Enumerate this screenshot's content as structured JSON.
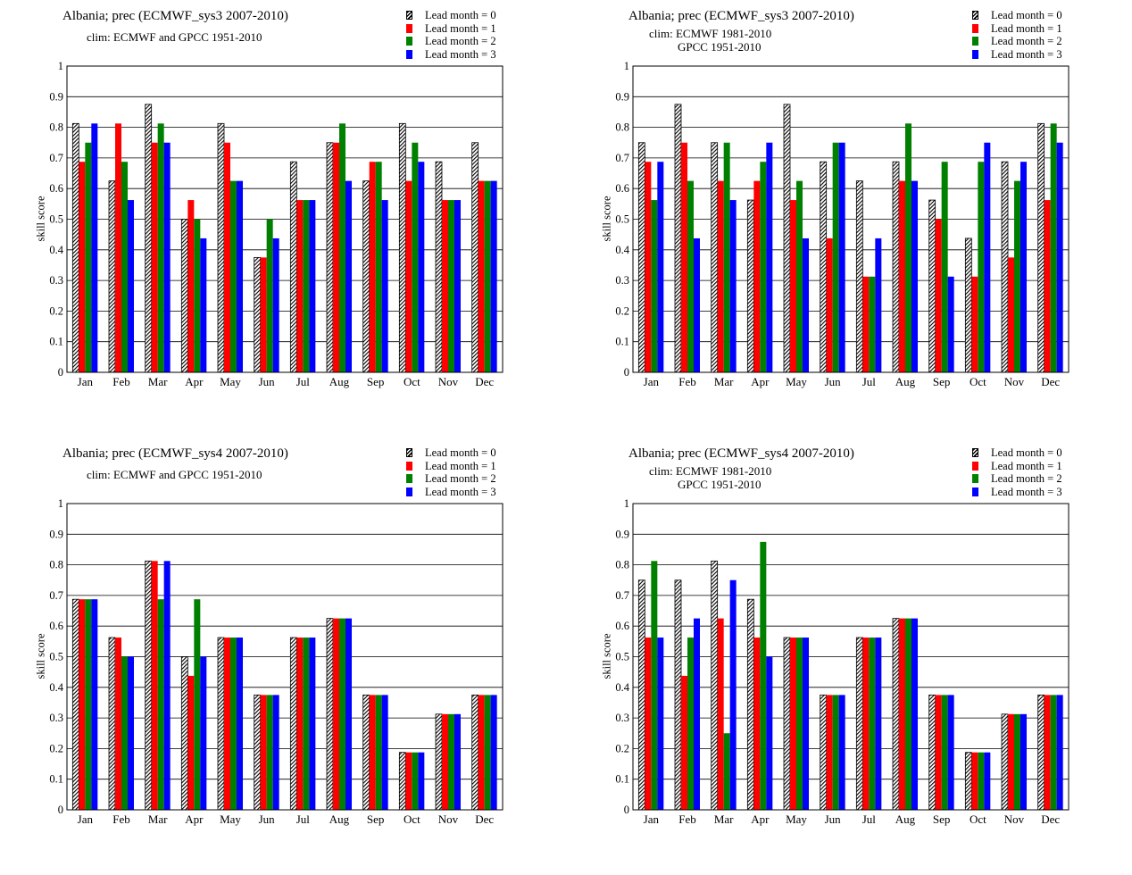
{
  "chart_data": [
    {
      "type": "bar",
      "title": "Albania; prec (ECMWF_sys3 2007-2010)",
      "subtitle_lines": [
        "clim: ECMWF and GPCC 1951-2010"
      ],
      "ylabel": "skill  score",
      "xlabel": "",
      "ylim": [
        0,
        1
      ],
      "yticks": [
        "0",
        "0.1",
        "0.2",
        "0.3",
        "0.4",
        "0.5",
        "0.6",
        "0.7",
        "0.8",
        "0.9",
        "1"
      ],
      "grid": "horizontal",
      "legend_position": "top-right",
      "categories": [
        "Jan",
        "Feb",
        "Mar",
        "Apr",
        "May",
        "Jun",
        "Jul",
        "Aug",
        "Sep",
        "Oct",
        "Nov",
        "Dec"
      ],
      "series": [
        {
          "name": "Lead month = 0",
          "values": [
            0.8125,
            0.625,
            0.875,
            0.5,
            0.8125,
            0.375,
            0.6875,
            0.75,
            0.625,
            0.8125,
            0.6875,
            0.75
          ]
        },
        {
          "name": "Lead month = 1",
          "values": [
            0.6875,
            0.8125,
            0.75,
            0.5625,
            0.75,
            0.375,
            0.5625,
            0.75,
            0.6875,
            0.625,
            0.5625,
            0.625
          ]
        },
        {
          "name": "Lead month = 2",
          "values": [
            0.75,
            0.6875,
            0.8125,
            0.5,
            0.625,
            0.5,
            0.5625,
            0.8125,
            0.6875,
            0.75,
            0.5625,
            0.625
          ]
        },
        {
          "name": "Lead month = 3",
          "values": [
            0.8125,
            0.5625,
            0.75,
            0.4375,
            0.625,
            0.4375,
            0.5625,
            0.625,
            0.5625,
            0.6875,
            0.5625,
            0.625
          ]
        }
      ]
    },
    {
      "type": "bar",
      "title": "Albania; prec (ECMWF_sys3 2007-2010)",
      "subtitle_lines": [
        "clim: ECMWF 1981-2010",
        "GPCC 1951-2010"
      ],
      "ylabel": "skill  score",
      "xlabel": "",
      "ylim": [
        0,
        1
      ],
      "yticks": [
        "0",
        "0.1",
        "0.2",
        "0.3",
        "0.4",
        "0.5",
        "0.6",
        "0.7",
        "0.8",
        "0.9",
        "1"
      ],
      "grid": "horizontal",
      "legend_position": "top-right",
      "categories": [
        "Jan",
        "Feb",
        "Mar",
        "Apr",
        "May",
        "Jun",
        "Jul",
        "Aug",
        "Sep",
        "Oct",
        "Nov",
        "Dec"
      ],
      "series": [
        {
          "name": "Lead month = 0",
          "values": [
            0.75,
            0.875,
            0.75,
            0.5625,
            0.875,
            0.6875,
            0.625,
            0.6875,
            0.5625,
            0.4375,
            0.6875,
            0.8125
          ]
        },
        {
          "name": "Lead month = 1",
          "values": [
            0.6875,
            0.75,
            0.625,
            0.625,
            0.5625,
            0.4375,
            0.3125,
            0.625,
            0.5,
            0.3125,
            0.375,
            0.5625
          ]
        },
        {
          "name": "Lead month = 2",
          "values": [
            0.5625,
            0.625,
            0.75,
            0.6875,
            0.625,
            0.75,
            0.3125,
            0.8125,
            0.6875,
            0.6875,
            0.625,
            0.8125
          ]
        },
        {
          "name": "Lead month = 3",
          "values": [
            0.6875,
            0.4375,
            0.5625,
            0.75,
            0.4375,
            0.75,
            0.4375,
            0.625,
            0.3125,
            0.75,
            0.6875,
            0.75
          ]
        }
      ]
    },
    {
      "type": "bar",
      "title": "Albania; prec (ECMWF_sys4 2007-2010)",
      "subtitle_lines": [
        "clim: ECMWF and GPCC 1951-2010"
      ],
      "ylabel": "skill  score",
      "xlabel": "",
      "ylim": [
        0,
        1
      ],
      "yticks": [
        "0",
        "0.1",
        "0.2",
        "0.3",
        "0.4",
        "0.5",
        "0.6",
        "0.7",
        "0.8",
        "0.9",
        "1"
      ],
      "grid": "horizontal",
      "legend_position": "top-right",
      "categories": [
        "Jan",
        "Feb",
        "Mar",
        "Apr",
        "May",
        "Jun",
        "Jul",
        "Aug",
        "Sep",
        "Oct",
        "Nov",
        "Dec"
      ],
      "series": [
        {
          "name": "Lead month = 0",
          "values": [
            0.6875,
            0.5625,
            0.8125,
            0.5,
            0.5625,
            0.375,
            0.5625,
            0.625,
            0.375,
            0.1875,
            0.3125,
            0.375
          ]
        },
        {
          "name": "Lead month = 1",
          "values": [
            0.6875,
            0.5625,
            0.8125,
            0.4375,
            0.5625,
            0.375,
            0.5625,
            0.625,
            0.375,
            0.1875,
            0.3125,
            0.375
          ]
        },
        {
          "name": "Lead month = 2",
          "values": [
            0.6875,
            0.5,
            0.6875,
            0.6875,
            0.5625,
            0.375,
            0.5625,
            0.625,
            0.375,
            0.1875,
            0.3125,
            0.375
          ]
        },
        {
          "name": "Lead month = 3",
          "values": [
            0.6875,
            0.5,
            0.8125,
            0.5,
            0.5625,
            0.375,
            0.5625,
            0.625,
            0.375,
            0.1875,
            0.3125,
            0.375
          ]
        }
      ]
    },
    {
      "type": "bar",
      "title": "Albania; prec (ECMWF_sys4 2007-2010)",
      "subtitle_lines": [
        "clim: ECMWF 1981-2010",
        "GPCC 1951-2010"
      ],
      "ylabel": "skill  score",
      "xlabel": "",
      "ylim": [
        0,
        1
      ],
      "yticks": [
        "0",
        "0.1",
        "0.2",
        "0.3",
        "0.4",
        "0.5",
        "0.6",
        "0.7",
        "0.8",
        "0.9",
        "1"
      ],
      "grid": "horizontal",
      "legend_position": "top-right",
      "categories": [
        "Jan",
        "Feb",
        "Mar",
        "Apr",
        "May",
        "Jun",
        "Jul",
        "Aug",
        "Sep",
        "Oct",
        "Nov",
        "Dec"
      ],
      "series": [
        {
          "name": "Lead month = 0",
          "values": [
            0.75,
            0.75,
            0.8125,
            0.6875,
            0.5625,
            0.375,
            0.5625,
            0.625,
            0.375,
            0.1875,
            0.3125,
            0.375
          ]
        },
        {
          "name": "Lead month = 1",
          "values": [
            0.5625,
            0.4375,
            0.625,
            0.5625,
            0.5625,
            0.375,
            0.5625,
            0.625,
            0.375,
            0.1875,
            0.3125,
            0.375
          ]
        },
        {
          "name": "Lead month = 2",
          "values": [
            0.8125,
            0.5625,
            0.25,
            0.875,
            0.5625,
            0.375,
            0.5625,
            0.625,
            0.375,
            0.1875,
            0.3125,
            0.375
          ]
        },
        {
          "name": "Lead month = 3",
          "values": [
            0.5625,
            0.625,
            0.75,
            0.5,
            0.5625,
            0.375,
            0.5625,
            0.625,
            0.375,
            0.1875,
            0.3125,
            0.375
          ]
        }
      ]
    }
  ],
  "series_colors": [
    "hatched-black",
    "#ff0000",
    "#008000",
    "#0000ff"
  ]
}
